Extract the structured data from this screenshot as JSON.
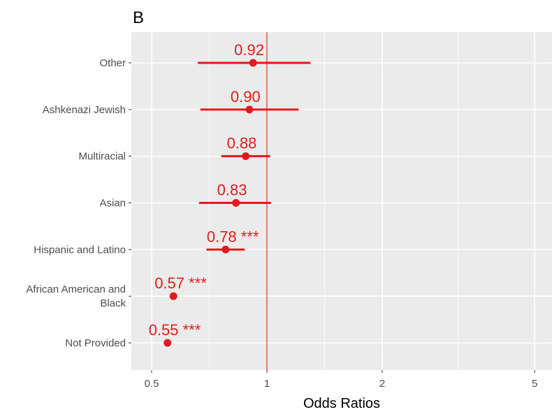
{
  "chart_data": {
    "type": "scatter",
    "panel_tag": "B",
    "xlabel": "Odds Ratios",
    "ylabel": "",
    "x_scale": "log",
    "xlim": [
      0.45,
      6.0
    ],
    "x_ticks": [
      {
        "value": 0.5,
        "label": "0.5"
      },
      {
        "value": 1,
        "label": "1"
      },
      {
        "value": 2,
        "label": "2"
      },
      {
        "value": 5,
        "label": "5"
      }
    ],
    "x_minor": [
      0.707,
      1.414,
      3.16
    ],
    "reference_line": 1,
    "grid": true,
    "legend": "none",
    "colors": {
      "point": "#e31a1c",
      "reference": "#cc0000",
      "panel": "#ebebeb",
      "grid": "#ffffff"
    },
    "rows": [
      {
        "category": "Other",
        "label_lines": [
          "Other"
        ],
        "or": 0.92,
        "lo": 0.66,
        "hi": 1.3,
        "label": "0.92"
      },
      {
        "category": "Ashkenazi Jewish",
        "label_lines": [
          "Ashkenazi Jewish"
        ],
        "or": 0.9,
        "lo": 0.67,
        "hi": 1.21,
        "label": "0.90"
      },
      {
        "category": "Multiracial",
        "label_lines": [
          "Multiracial"
        ],
        "or": 0.88,
        "lo": 0.76,
        "hi": 1.02,
        "label": "0.88"
      },
      {
        "category": "Asian",
        "label_lines": [
          "Asian"
        ],
        "or": 0.83,
        "lo": 0.665,
        "hi": 1.025,
        "label": "0.83"
      },
      {
        "category": "Hispanic and Latino",
        "label_lines": [
          "Hispanic and Latino"
        ],
        "or": 0.78,
        "lo": 0.695,
        "hi": 0.875,
        "label": "0.78 ***"
      },
      {
        "category": "African American and Black",
        "label_lines": [
          "African American and",
          "Black"
        ],
        "or": 0.57,
        "lo": 0.562,
        "hi": 0.578,
        "label": "0.57 ***"
      },
      {
        "category": "Not Provided",
        "label_lines": [
          "Not Provided"
        ],
        "or": 0.55,
        "lo": 0.542,
        "hi": 0.558,
        "label": "0.55 ***"
      }
    ]
  }
}
